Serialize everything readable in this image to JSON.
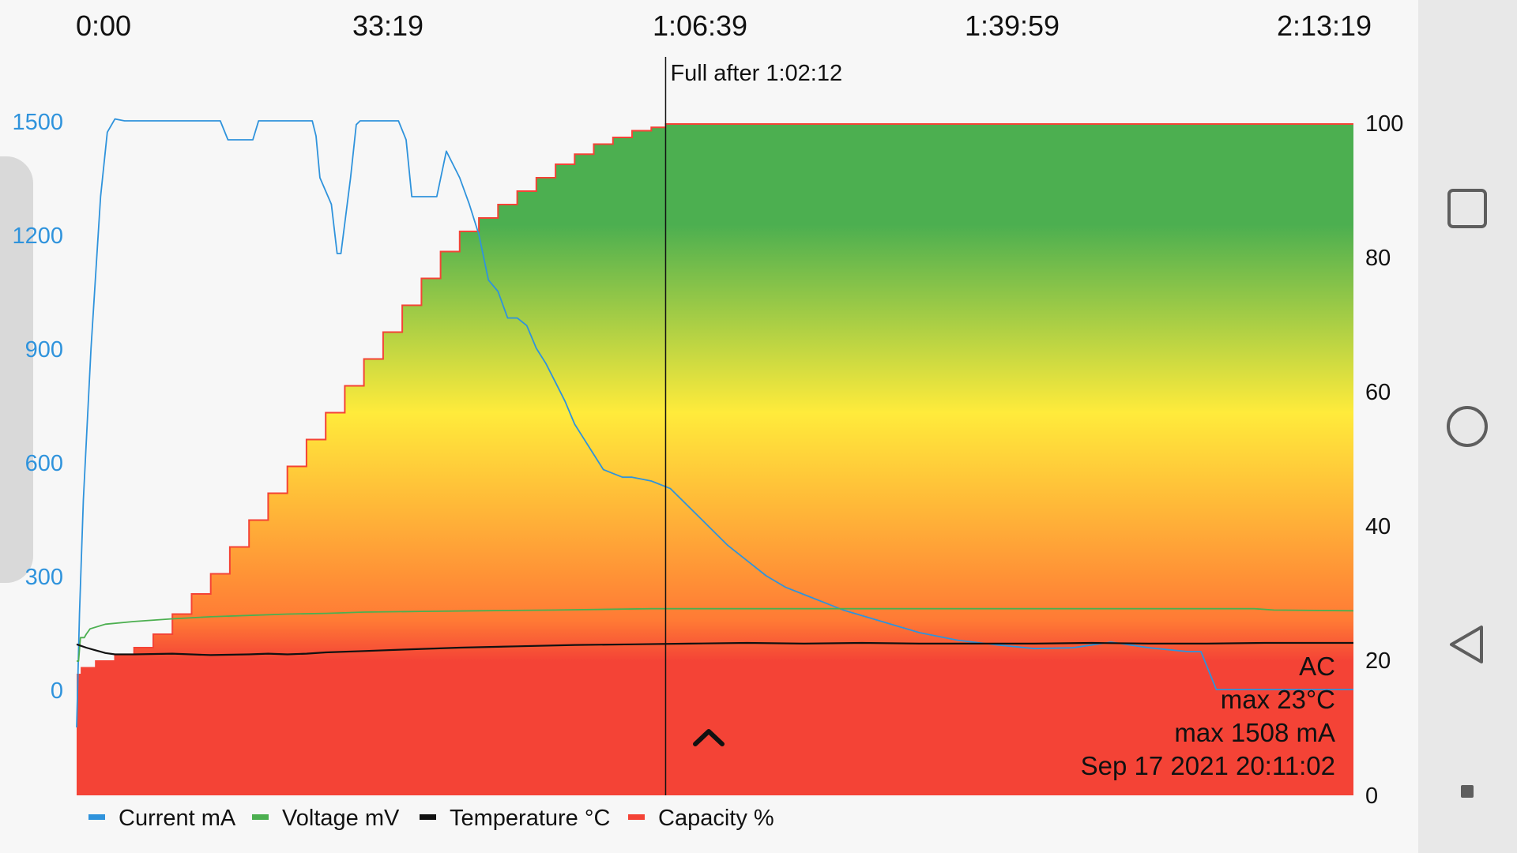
{
  "chart_data": {
    "type": "line",
    "x_unit": "minutes",
    "x_ticks": [
      "0:00",
      "33:19",
      "1:06:39",
      "1:39:59",
      "2:13:19"
    ],
    "x_range": [
      0,
      133.32
    ],
    "y_left": {
      "ticks": [
        "1500",
        "1200",
        "900",
        "600",
        "300",
        "0"
      ],
      "range": [
        -200,
        1600
      ],
      "color": "#2f93dc"
    },
    "y_right": {
      "ticks": [
        "100",
        "80",
        "60",
        "40",
        "20",
        "0"
      ],
      "range": [
        0,
        100
      ]
    },
    "marker": {
      "x": 61.5,
      "label": "Full after 1:02:12"
    },
    "info": [
      "AC",
      "max 23°C",
      "max 1508 mA",
      "Sep 17 2021 20:11:02"
    ],
    "legend": [
      {
        "label": "Current mA",
        "color": "#2f93dc"
      },
      {
        "label": "Voltage mV",
        "color": "#4caf50"
      },
      {
        "label": "Temperature °C",
        "color": "#111111"
      },
      {
        "label": "Capacity %",
        "color": "#f44336"
      }
    ],
    "series": [
      {
        "name": "Capacity %",
        "color": "#f44336",
        "step": true,
        "x": [
          0,
          0.5,
          2,
          4,
          6,
          8,
          10,
          12,
          14,
          16,
          18,
          20,
          22,
          24,
          26,
          28,
          30,
          32,
          34,
          36,
          38,
          40,
          42,
          44,
          46,
          48,
          50,
          52,
          54,
          56,
          58,
          60,
          61.5,
          133.32
        ],
        "values": [
          18,
          19,
          20,
          21,
          22,
          24,
          27,
          30,
          33,
          37,
          41,
          45,
          49,
          53,
          57,
          61,
          65,
          69,
          73,
          77,
          81,
          84,
          86,
          88,
          90,
          92,
          94,
          95.5,
          97,
          98,
          99,
          99.5,
          100,
          100
        ]
      },
      {
        "name": "Current mA",
        "color": "#2f93dc",
        "x": [
          0,
          0.3,
          0.7,
          1.5,
          2.5,
          3.2,
          4,
          5,
          15,
          15.8,
          18.4,
          19,
          24.6,
          25,
          25.4,
          26.6,
          27.2,
          27.6,
          28.6,
          29.2,
          29.6,
          33.6,
          34.4,
          35,
          35.8,
          37.6,
          38.6,
          40,
          41,
          42,
          43,
          44,
          45,
          46,
          47,
          48,
          49,
          50,
          51,
          52,
          53,
          54,
          55,
          56,
          57,
          58,
          59,
          60,
          62,
          64,
          66,
          68,
          70,
          72,
          74,
          76,
          78,
          80,
          84,
          88,
          92,
          96,
          100,
          104,
          108,
          112,
          116,
          117.4,
          119,
          125,
          133.32
        ],
        "values": [
          -100,
          200,
          500,
          900,
          1300,
          1470,
          1505,
          1500,
          1500,
          1450,
          1450,
          1500,
          1500,
          1460,
          1350,
          1280,
          1150,
          1150,
          1350,
          1490,
          1500,
          1500,
          1450,
          1300,
          1300,
          1300,
          1420,
          1350,
          1280,
          1200,
          1080,
          1050,
          980,
          980,
          960,
          900,
          860,
          810,
          760,
          700,
          660,
          620,
          580,
          570,
          560,
          560,
          555,
          550,
          530,
          480,
          430,
          380,
          340,
          300,
          270,
          250,
          230,
          210,
          180,
          150,
          130,
          118,
          108,
          110,
          125,
          110,
          100,
          100,
          0,
          0,
          0
        ]
      },
      {
        "name": "Voltage mV",
        "color": "#4caf50",
        "x": [
          0,
          0.2,
          0.4,
          0.8,
          1,
          1.4,
          3,
          6,
          10,
          14,
          18,
          22,
          26,
          30,
          36,
          42,
          50,
          60,
          70,
          80,
          90,
          100,
          110,
          120,
          123,
          125,
          133.32
        ],
        "values": [
          20,
          20,
          23.5,
          23.5,
          24,
          24.8,
          25.5,
          25.9,
          26.3,
          26.6,
          26.8,
          27.0,
          27.1,
          27.3,
          27.4,
          27.5,
          27.6,
          27.8,
          27.8,
          27.8,
          27.8,
          27.8,
          27.8,
          27.8,
          27.8,
          27.6,
          27.5
        ]
      },
      {
        "name": "Temperature °C",
        "color": "#111111",
        "x": [
          0,
          1,
          2,
          3,
          4,
          6,
          10,
          14,
          18,
          20,
          22,
          24,
          26,
          30,
          34,
          40,
          46,
          52,
          58,
          64,
          70,
          76,
          82,
          88,
          94,
          100,
          106,
          112,
          118,
          124,
          130,
          133.32
        ],
        "values": [
          22.5,
          22,
          21.6,
          21.2,
          21.0,
          21.0,
          21.1,
          20.9,
          21.0,
          21.1,
          21.0,
          21.1,
          21.3,
          21.5,
          21.7,
          22.0,
          22.2,
          22.4,
          22.5,
          22.6,
          22.7,
          22.6,
          22.7,
          22.6,
          22.6,
          22.6,
          22.7,
          22.6,
          22.6,
          22.7,
          22.7,
          22.7
        ]
      }
    ]
  }
}
